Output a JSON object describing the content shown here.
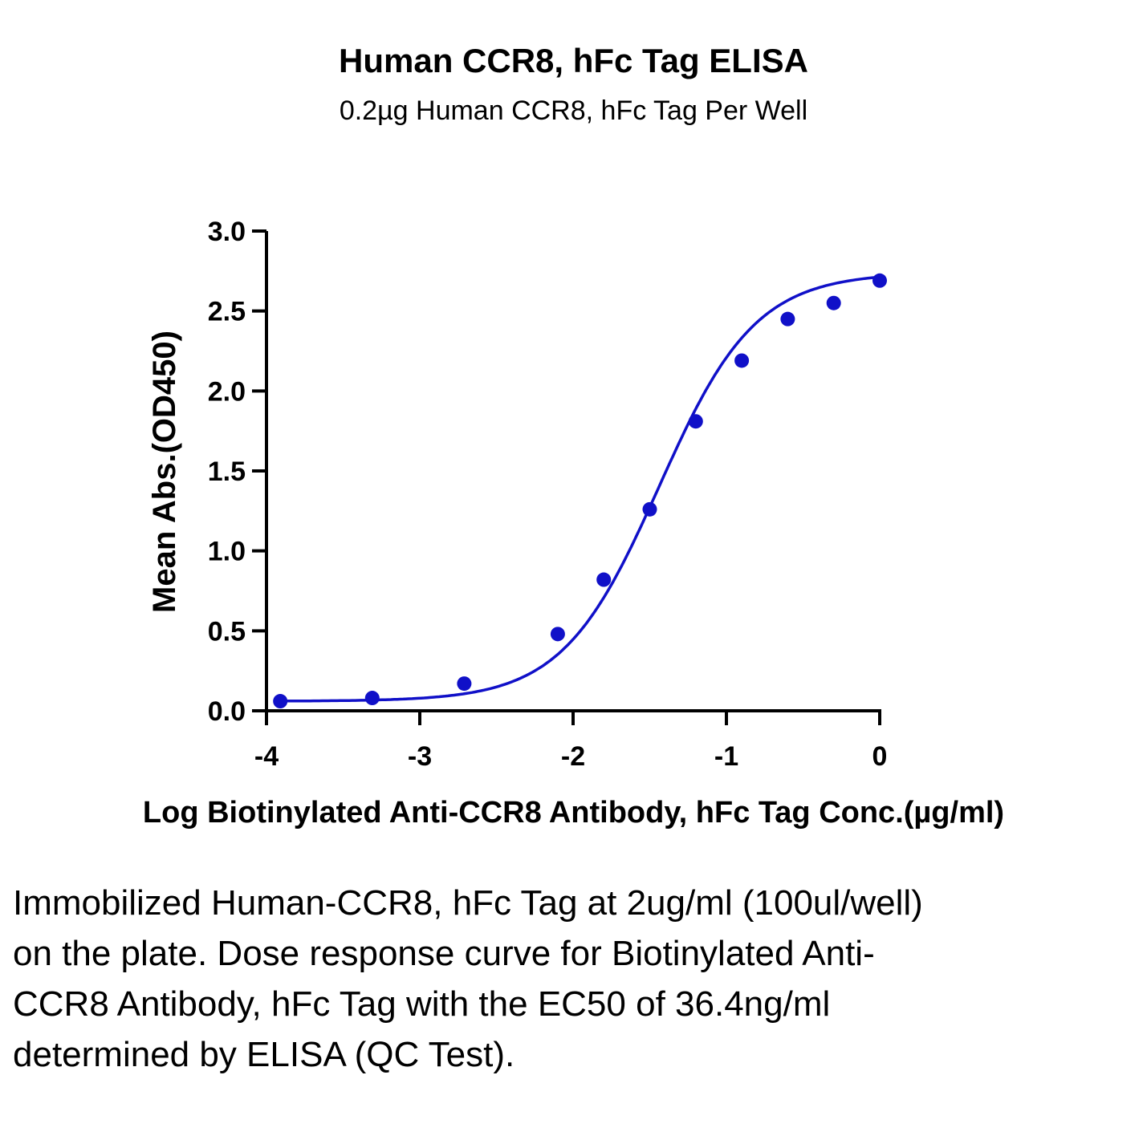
{
  "chart_data": {
    "type": "scatter",
    "title": "Human CCR8, hFc Tag ELISA",
    "subtitle": "0.2µg Human CCR8, hFc Tag Per Well",
    "xlabel": "Log Biotinylated Anti-CCR8 Antibody, hFc Tag Conc.(µg/ml)",
    "ylabel": "Mean Abs.(OD450)",
    "xlim": [
      -4,
      0
    ],
    "ylim": [
      0,
      3.0
    ],
    "x_ticks": [
      "-4",
      "-3",
      "-2",
      "-1",
      "0"
    ],
    "y_ticks": [
      "0.0",
      "0.5",
      "1.0",
      "1.5",
      "2.0",
      "2.5",
      "3.0"
    ],
    "grid": false,
    "series": [
      {
        "x": [
          -3.91,
          -3.31,
          -2.71,
          -2.1,
          -1.8,
          -1.5,
          -1.2,
          -0.9,
          -0.6,
          -0.3,
          0.0
        ],
        "y": [
          0.06,
          0.08,
          0.17,
          0.48,
          0.82,
          1.26,
          1.81,
          2.19,
          2.45,
          2.55,
          2.69
        ],
        "color": "#1010c8",
        "fit": "four-parameter logistic"
      }
    ]
  },
  "caption": "Immobilized Human-CCR8, hFc Tag at 2ug/ml (100ul/well) on the plate. Dose response curve for Biotinylated Anti-CCR8 Antibody, hFc Tag with the EC50 of 36.4ng/ml determined by ELISA (QC Test)."
}
